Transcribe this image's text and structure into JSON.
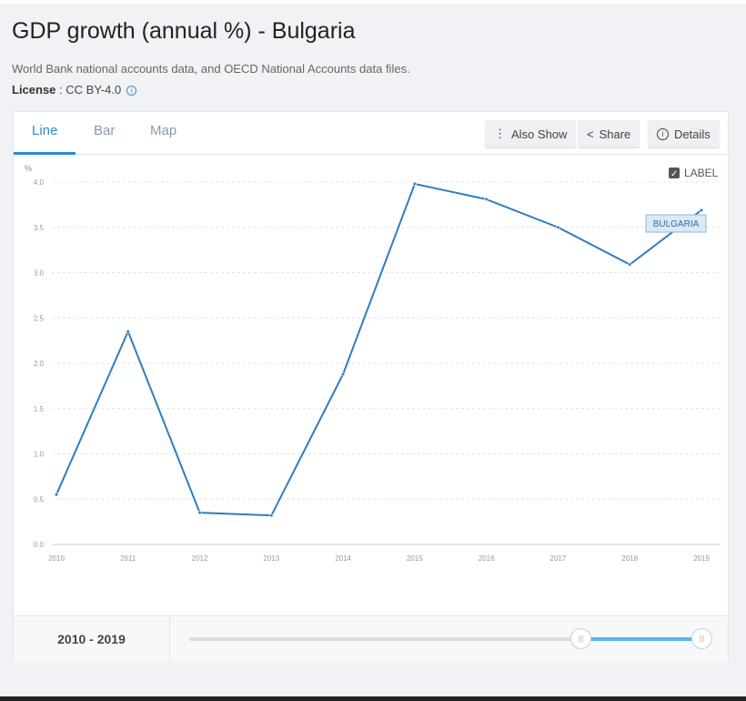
{
  "title": "GDP growth (annual %) - Bulgaria",
  "source": "World Bank national accounts data, and OECD National Accounts data files.",
  "license_label": "License",
  "license_value": ": CC BY-4.0",
  "tabs": [
    "Line",
    "Bar",
    "Map"
  ],
  "buttons": {
    "also_show": "Also Show",
    "share": "Share",
    "details": "Details"
  },
  "label_toggle": "LABEL",
  "range_text": "2010 - 2019",
  "slider": {
    "min": 1960,
    "max": 2019,
    "from": 2010,
    "to": 2019
  },
  "colors": {
    "line": "#2f7dbf",
    "accent": "#2b8ad8"
  },
  "chart_data": {
    "type": "line",
    "ylabel": "%",
    "ylim": [
      0,
      4.0
    ],
    "yticks": [
      "0.0",
      "0.5",
      "1.0",
      "1.5",
      "2.0",
      "2.5",
      "3.0",
      "3.5",
      "4.0"
    ],
    "x": [
      "2010",
      "2011",
      "2012",
      "2013",
      "2014",
      "2015",
      "2016",
      "2017",
      "2018",
      "2019"
    ],
    "series": [
      {
        "name": "BULGARIA",
        "values": [
          0.55,
          2.35,
          0.35,
          0.32,
          1.88,
          3.98,
          3.81,
          3.5,
          3.09,
          3.69
        ]
      }
    ],
    "grid": true
  }
}
